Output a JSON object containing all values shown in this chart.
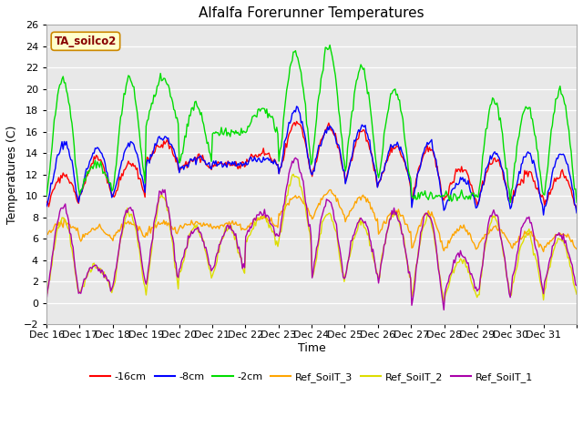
{
  "title": "Alfalfa Forerunner Temperatures",
  "xlabel": "Time",
  "ylabel": "Temperatures (C)",
  "ylim": [
    -2,
    26
  ],
  "yticks": [
    -2,
    0,
    2,
    4,
    6,
    8,
    10,
    12,
    14,
    16,
    18,
    20,
    22,
    24,
    26
  ],
  "annotation_text": "TA_soilco2",
  "annotation_bg": "#ffffcc",
  "annotation_border": "#cc8800",
  "annotation_fg": "#880000",
  "fig_bg": "#ffffff",
  "plot_bg": "#e8e8e8",
  "series_colors": {
    "-16cm": "#ff0000",
    "-8cm": "#0000ff",
    "-2cm": "#00dd00",
    "Ref_SoilT_3": "#ffa500",
    "Ref_SoilT_2": "#dddd00",
    "Ref_SoilT_1": "#aa00aa"
  },
  "legend_labels": [
    "-16cm",
    "-8cm",
    "-2cm",
    "Ref_SoilT_3",
    "Ref_SoilT_2",
    "Ref_SoilT_1"
  ],
  "xtick_labels": [
    "Dec 16",
    "Dec 17",
    "Dec 18",
    "Dec 19",
    "Dec 20",
    "Dec 21",
    "Dec 22",
    "Dec 23",
    "Dec 24",
    "Dec 25",
    "Dec 26",
    "Dec 27",
    "Dec 28",
    "Dec 29",
    "Dec 30",
    "Dec 31"
  ],
  "n_points": 480,
  "n_days": 16
}
